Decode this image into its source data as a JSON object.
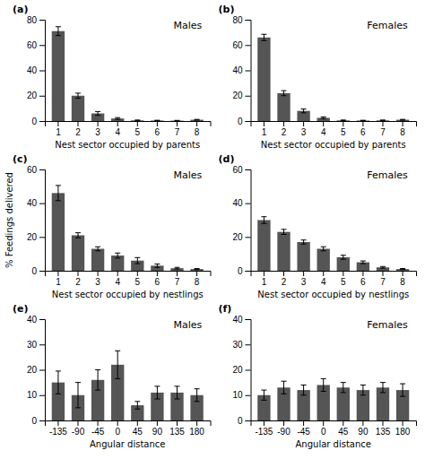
{
  "chart_data": [
    {
      "type": "bar",
      "title": "Males",
      "annotations": [
        "(a)"
      ],
      "categories": [
        "1",
        "2",
        "3",
        "4",
        "5",
        "6",
        "7",
        "8"
      ],
      "values": [
        71,
        20,
        6,
        2,
        0.5,
        0.4,
        0.3,
        1
      ],
      "errors": [
        3.5,
        2.0,
        1.5,
        0.7,
        0.3,
        0.2,
        0.2,
        0.3
      ],
      "xlabel": "Nest sector occupied by parents",
      "ylim": [
        0,
        80
      ],
      "yticks": [
        0,
        20,
        40,
        60,
        80
      ],
      "color": "#555555",
      "grid": false
    },
    {
      "type": "bar",
      "title": "Females",
      "annotations": [
        "(b)"
      ],
      "categories": [
        "1",
        "2",
        "3",
        "4",
        "5",
        "6",
        "7",
        "8"
      ],
      "values": [
        66,
        22,
        8,
        2.5,
        0.5,
        0.4,
        0.5,
        1
      ],
      "errors": [
        2.5,
        2.0,
        1.5,
        0.7,
        0.3,
        0.2,
        0.3,
        0.3
      ],
      "xlabel": "Nest sector occupied by parents",
      "ylim": [
        0,
        80
      ],
      "yticks": [
        0,
        20,
        40,
        60,
        80
      ],
      "color": "#555555",
      "grid": false
    },
    {
      "type": "bar",
      "title": "Males",
      "annotations": [
        "(c)"
      ],
      "categories": [
        "1",
        "2",
        "3",
        "4",
        "5",
        "6",
        "7",
        "8"
      ],
      "values": [
        46,
        21,
        13,
        9,
        6,
        3,
        1.5,
        1
      ],
      "errors": [
        4.5,
        1.5,
        1.2,
        1.5,
        1.8,
        1.0,
        0.5,
        0.3
      ],
      "xlabel": "Nest sector occupied by nestlings",
      "ylabel": "% Feedings delivered",
      "ylim": [
        0,
        60
      ],
      "yticks": [
        0,
        20,
        40,
        60
      ],
      "color": "#555555",
      "grid": false
    },
    {
      "type": "bar",
      "title": "Females",
      "annotations": [
        "(d)"
      ],
      "categories": [
        "1",
        "2",
        "3",
        "4",
        "5",
        "6",
        "7",
        "8"
      ],
      "values": [
        30,
        23,
        17,
        13,
        8,
        5,
        2,
        1
      ],
      "errors": [
        2.0,
        1.5,
        1.2,
        1.2,
        1.2,
        0.8,
        0.5,
        0.3
      ],
      "xlabel": "Nest sector occupied by nestlings",
      "ylim": [
        0,
        60
      ],
      "yticks": [
        0,
        20,
        40,
        60
      ],
      "color": "#555555",
      "grid": false
    },
    {
      "type": "bar",
      "title": "Males",
      "annotations": [
        "(e)"
      ],
      "categories": [
        "-135",
        "-90",
        "-45",
        "0",
        "45",
        "90",
        "135",
        "180"
      ],
      "values": [
        15,
        10,
        16,
        22,
        6,
        11,
        11,
        10
      ],
      "errors": [
        4.5,
        5.0,
        4.0,
        5.5,
        1.5,
        2.5,
        2.5,
        2.5
      ],
      "xlabel": "Angular distance",
      "ylim": [
        0,
        40
      ],
      "yticks": [
        0,
        10,
        20,
        30,
        40
      ],
      "color": "#555555",
      "grid": false
    },
    {
      "type": "bar",
      "title": "Females",
      "annotations": [
        "(f)"
      ],
      "categories": [
        "-135",
        "-90",
        "-45",
        "0",
        "45",
        "90",
        "135",
        "180"
      ],
      "values": [
        10,
        13,
        12,
        14,
        13,
        12,
        13,
        12
      ],
      "errors": [
        2.0,
        2.5,
        2.0,
        2.5,
        2.0,
        2.0,
        2.0,
        2.5
      ],
      "xlabel": "Angular distance",
      "ylim": [
        0,
        40
      ],
      "yticks": [
        0,
        10,
        20,
        30,
        40
      ],
      "color": "#555555",
      "grid": false
    }
  ]
}
